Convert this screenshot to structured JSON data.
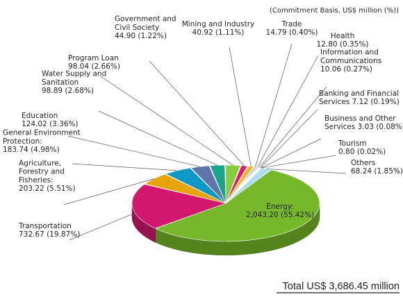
{
  "chart_data": {
    "type": "pie",
    "unit_note": "(Commitment Basis, US$ million (%))",
    "total_label": "Total US$ 3,686.45 million",
    "slices": [
      {
        "name": "Energy",
        "value": 2043.2,
        "pct": 55.42,
        "color": "#76b82a",
        "label": [
          "Energy:",
          "2,043.20 (55.42%)"
        ]
      },
      {
        "name": "Transportation",
        "value": 732.67,
        "pct": 19.87,
        "color": "#d2176e",
        "label": [
          "Transportation",
          "732.67 (19.87%)"
        ]
      },
      {
        "name": "Agriculture, Forestry and Fisheries",
        "value": 203.22,
        "pct": 5.51,
        "color": "#e8a40c",
        "label": [
          "Agriculture,",
          "Forestry and",
          "Fisheries:",
          "203.22 (5.51%)"
        ]
      },
      {
        "name": "General Environment Protection",
        "value": 183.74,
        "pct": 4.98,
        "color": "#0f98c4",
        "label": [
          "General Environment",
          "Protection:",
          "183.74 (4.98%)"
        ]
      },
      {
        "name": "Education",
        "value": 124.02,
        "pct": 3.36,
        "color": "#5f73ad",
        "label": [
          "Education",
          "124.02 (3.36%)"
        ]
      },
      {
        "name": "Water Supply and Sanitation",
        "value": 98.89,
        "pct": 2.68,
        "color": "#1ba48c",
        "label": [
          "Water Supply and",
          "Sanitation",
          "98.89 (2.68%)"
        ]
      },
      {
        "name": "Program Loan",
        "value": 98.04,
        "pct": 2.66,
        "color": "#86cc3e",
        "label": [
          "Program Loan",
          "98.04 (2.66%)"
        ]
      },
      {
        "name": "Government and Civil Society",
        "value": 44.9,
        "pct": 1.22,
        "color": "#e6196e",
        "label": [
          "Government and",
          "Civil Society",
          "44.90 (1.22%)"
        ]
      },
      {
        "name": "Mining and Industry",
        "value": 40.92,
        "pct": 1.11,
        "color": "#f2b51a",
        "label": [
          "Mining and Industry",
          "40.92 (1.11%)"
        ]
      },
      {
        "name": "Trade",
        "value": 14.79,
        "pct": 0.4,
        "color": "#4e9bd0",
        "label": [
          "Trade",
          "14.79 (0.40%)"
        ]
      },
      {
        "name": "Health",
        "value": 12.8,
        "pct": 0.35,
        "color": "#e35d9a",
        "label": [
          "Health",
          "12.80 (0.35%)"
        ]
      },
      {
        "name": "Information and Communications",
        "value": 10.06,
        "pct": 0.27,
        "color": "#34b3d8",
        "label": [
          "Information and",
          "Communications",
          "10.06 (0.27%)"
        ]
      },
      {
        "name": "Banking and Financial Services",
        "value": 7.12,
        "pct": 0.19,
        "color": "#8a7fbf",
        "label": [
          "Banking and Financial",
          "Services 7.12 (0.19%)"
        ]
      },
      {
        "name": "Business and Other Services",
        "value": 3.03,
        "pct": 0.08,
        "color": "#2a8f6a",
        "label": [
          "Business and Other",
          "Services 3.03 (0.08%)"
        ]
      },
      {
        "name": "Tourism",
        "value": 0.8,
        "pct": 0.02,
        "color": "#c8c8c8",
        "label": [
          "Tourism",
          "0.80 (0.02%)"
        ]
      },
      {
        "name": "Others",
        "value": 68.24,
        "pct": 1.85,
        "color": "#a9def3",
        "label": [
          "Others",
          "68.24 (1.85%)"
        ]
      }
    ]
  }
}
